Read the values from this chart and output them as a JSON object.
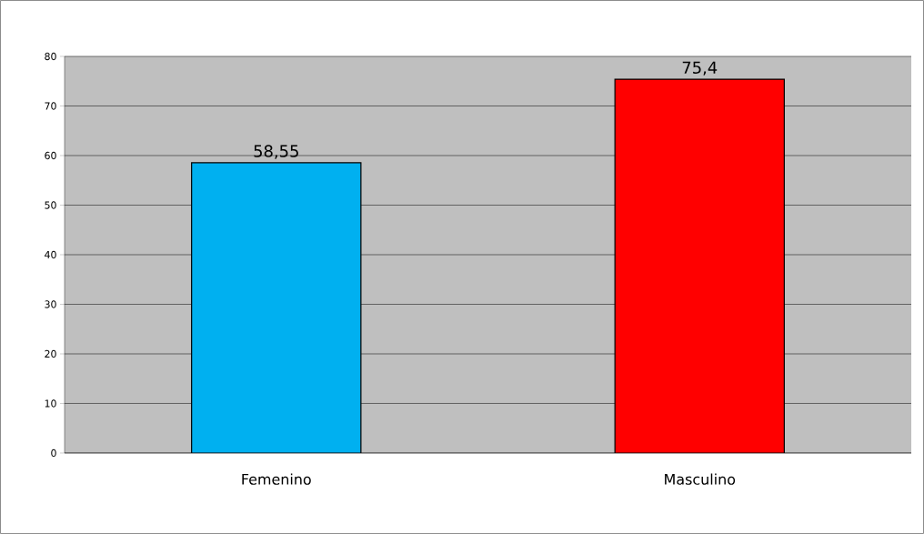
{
  "chart_data": {
    "type": "bar",
    "categories": [
      "Femenino",
      "Masculino"
    ],
    "values": [
      58.55,
      75.4
    ],
    "colors": [
      "#00b0f0",
      "#ff0000"
    ],
    "value_labels": [
      "58,55",
      "75,4"
    ],
    "ylim": [
      0,
      80
    ],
    "yticks": [
      0,
      10,
      20,
      30,
      40,
      50,
      60,
      70,
      80
    ],
    "grid": "y"
  }
}
